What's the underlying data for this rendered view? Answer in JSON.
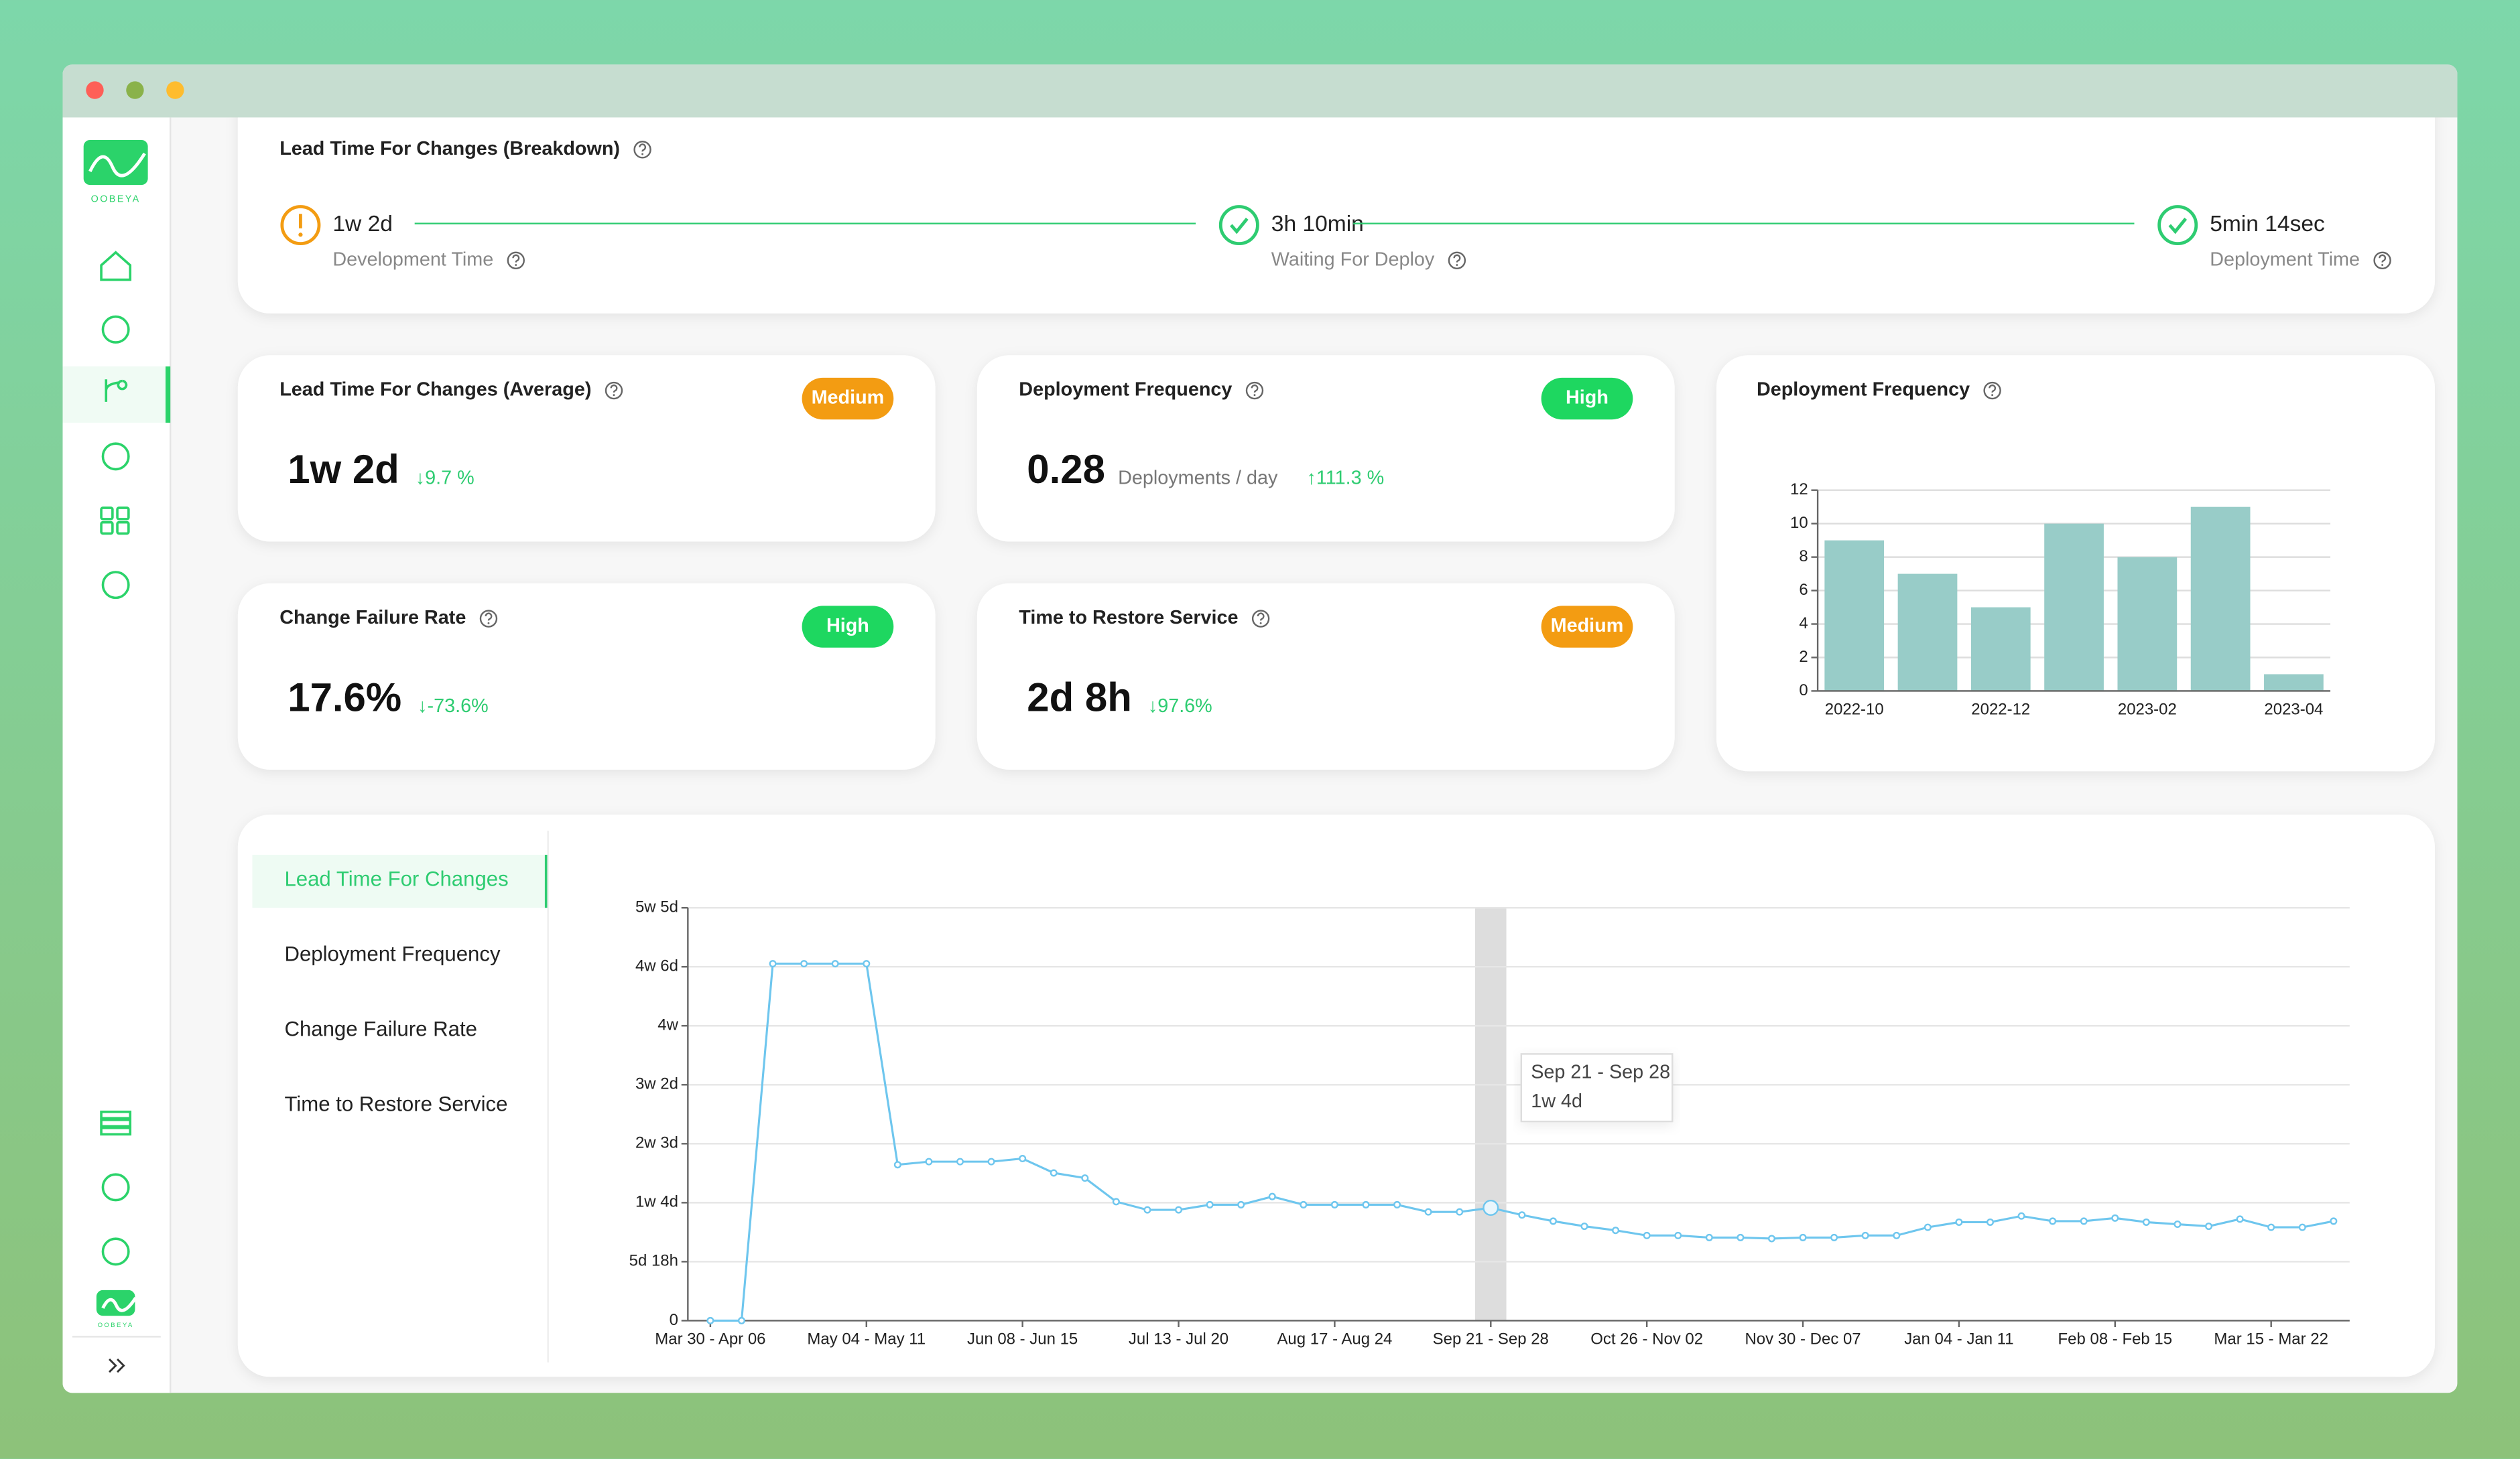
{
  "window": {
    "brand": "OOBEYA"
  },
  "breakdown": {
    "title": "Lead Time For Changes (Breakdown)",
    "steps": [
      {
        "value": "1w 2d",
        "label": "Development Time",
        "status": "warning",
        "color": "#f39c12"
      },
      {
        "value": "3h 10min",
        "label": "Waiting For Deploy",
        "status": "done",
        "color": "#2ecc71"
      },
      {
        "value": "5min 14sec",
        "label": "Deployment Time",
        "status": "done",
        "color": "#2ecc71"
      }
    ]
  },
  "metrics": [
    {
      "title": "Lead Time For Changes (Average)",
      "badge": "Medium",
      "badge_color": "#f39c12",
      "value": "1w 2d",
      "change": "↓9.7 %"
    },
    {
      "title": "Deployment Frequency",
      "badge": "High",
      "badge_color": "#1ed760",
      "value": "0.28",
      "unit": "Deployments / day",
      "change": "↑111.3 %"
    },
    {
      "title": "Change Failure Rate",
      "badge": "High",
      "badge_color": "#1ed760",
      "value": "17.6%",
      "change": "↓-73.6%"
    },
    {
      "title": "Time to Restore Service",
      "badge": "Medium",
      "badge_color": "#f39c12",
      "value": "2d 8h",
      "change": "↓97.6%"
    }
  ],
  "tabs": [
    "Lead Time For Changes",
    "Deployment Frequency",
    "Change Failure Rate",
    "Time to Restore Service"
  ],
  "chart_data": [
    {
      "type": "bar",
      "title": "Deployment Frequency",
      "categories": [
        "2022-10",
        null,
        "2022-12",
        null,
        "2023-02",
        null,
        "2023-04"
      ],
      "values": [
        9,
        7,
        5,
        10,
        8,
        11,
        1
      ],
      "color": "#98ccc8",
      "ylim": [
        0,
        12
      ],
      "yticks": [
        0,
        2,
        4,
        6,
        8,
        10,
        12
      ],
      "grid": true
    },
    {
      "type": "line",
      "categories": [
        "Mar 30 - Apr 06",
        null,
        null,
        null,
        null,
        "May 04 - May 11",
        null,
        null,
        null,
        null,
        "Jun 08 - Jun 15",
        null,
        null,
        null,
        null,
        "Jul 13 - Jul 20",
        null,
        null,
        null,
        null,
        "Aug 17 - Aug 24",
        null,
        null,
        null,
        null,
        "Sep 21 - Sep 28",
        null,
        null,
        null,
        null,
        "Oct 26 - Nov 02",
        null,
        null,
        null,
        null,
        "Nov 30 - Dec 07",
        null,
        null,
        null,
        null,
        "Jan 04 - Jan 11",
        null,
        null,
        null,
        null,
        "Feb 08 - Feb 15",
        null,
        null,
        null,
        null,
        "Mar 15 - Mar 22",
        null,
        null
      ],
      "values": [
        0,
        0,
        34.8,
        34.8,
        34.8,
        34.8,
        15.2,
        15.5,
        15.5,
        15.5,
        15.8,
        14.4,
        13.9,
        11.6,
        10.8,
        10.8,
        11.3,
        11.3,
        12.1,
        11.3,
        11.3,
        11.3,
        11.3,
        10.6,
        10.6,
        11,
        10.3,
        9.7,
        9.2,
        8.8,
        8.3,
        8.3,
        8.1,
        8.1,
        8,
        8.1,
        8.1,
        8.3,
        8.3,
        9.1,
        9.6,
        9.6,
        10.2,
        9.7,
        9.7,
        10,
        9.6,
        9.4,
        9.2,
        9.9,
        9.1,
        9.1,
        9.7
      ],
      "color": "#6ec6ee",
      "ylim": [
        0,
        40.25
      ],
      "yticks": [
        0,
        {
          "value": 5.75,
          "label": "5d 18h"
        },
        {
          "value": 11.5,
          "label": "1w 4d"
        },
        {
          "value": 17.25,
          "label": "2w 3d"
        },
        {
          "value": 23,
          "label": "3w 2d"
        },
        {
          "value": 28.75,
          "label": "4w"
        },
        {
          "value": 34.5,
          "label": "4w 6d"
        },
        {
          "value": 40.25,
          "label": "5w 5d"
        }
      ],
      "grid": true,
      "tooltip": {
        "title": "Sep 21 - Sep 28",
        "value": "1w 4d"
      }
    }
  ]
}
